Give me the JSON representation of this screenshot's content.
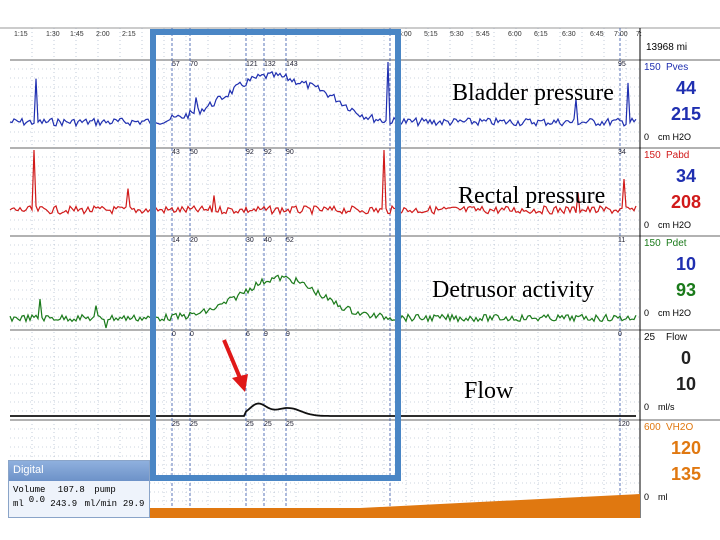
{
  "time_axis": {
    "ticks": [
      "1:15",
      "1:30",
      "1:45",
      "2:00",
      "2:15",
      "5:00",
      "5:15",
      "5:30",
      "5:45",
      "6:00",
      "6:15",
      "6:30",
      "6:45",
      "7:00",
      "7:"
    ],
    "total_label": "13968 mi"
  },
  "channels": [
    {
      "id": "pves",
      "annotation": "Bladder pressure",
      "scale_max": "150",
      "scale_min": "0",
      "short_name": "Pves",
      "value_top": "44",
      "value_bottom": "215",
      "unit": "cm H2O",
      "color": "#1f2fb0"
    },
    {
      "id": "pabd",
      "annotation": "Rectal pressure",
      "scale_max": "150",
      "scale_min": "0",
      "short_name": "Pabd",
      "value_top": "34",
      "value_bottom": "208",
      "unit": "cm H2O",
      "color": "#d11a1a"
    },
    {
      "id": "pdet",
      "annotation": "Detrusor activity",
      "scale_max": "150",
      "scale_min": "0",
      "short_name": "Pdet",
      "value_top": "10",
      "value_bottom": "93",
      "unit": "cm H2O",
      "color": "#1a7a1a"
    },
    {
      "id": "flow",
      "annotation": "Flow",
      "scale_max": "25",
      "scale_min": "0",
      "short_name": "Flow",
      "value_top": "0",
      "value_bottom": "10",
      "unit": "ml/s",
      "color": "#111111"
    },
    {
      "id": "vh2o",
      "annotation": "",
      "scale_max": "600",
      "scale_min": "0",
      "short_name": "VH2O",
      "value_top": "120",
      "value_bottom": "135",
      "unit": "ml",
      "color": "#e07810"
    }
  ],
  "markers": {
    "pves": [
      "57",
      "70",
      "121",
      "132",
      "143",
      "95"
    ],
    "pabd": [
      "43",
      "50",
      "92",
      "92",
      "90",
      "34"
    ],
    "pdet": [
      "14",
      "20",
      "30",
      "40",
      "52",
      "11"
    ],
    "flow": [
      "0",
      "0",
      "6",
      "9",
      "9",
      "0"
    ],
    "vh2o": [
      "25",
      "25",
      "25",
      "25",
      "25",
      "120"
    ]
  },
  "digital_panel": {
    "title": "Digital",
    "volume_label": "Volume",
    "volume_value": "107.8",
    "pump_label": "pump",
    "pump_value": "0.0",
    "unit_left": "ml",
    "rate_value": "243.9",
    "rate_unit": "ml/min",
    "rate_right": "29.9"
  },
  "colors": {
    "highlight_box": "#4a86c5",
    "arrow": "#e01818",
    "grid": "#9aa9c0"
  }
}
